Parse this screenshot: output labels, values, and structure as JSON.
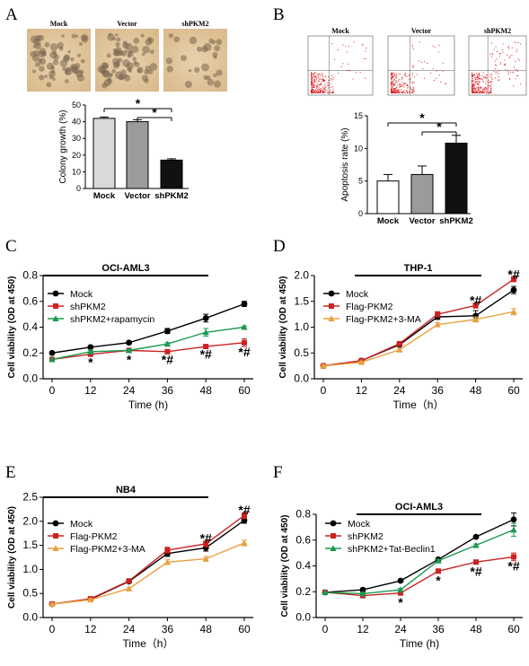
{
  "panels": {
    "A": {
      "letter": "A",
      "images": [
        "Mock",
        "Vector",
        "shPKM2"
      ],
      "chart": {
        "type": "bar",
        "categories": [
          "Mock",
          "Vector",
          "shPKM2"
        ],
        "values": [
          42,
          40,
          17
        ],
        "errors": [
          0.8,
          1.2,
          0.8
        ],
        "ylabel": "Colony growth (%)",
        "ylim": [
          0,
          50
        ],
        "yticks": [
          0,
          10,
          20,
          30,
          40,
          50
        ],
        "colors": [
          "#d9d9d9",
          "#9b9b9b",
          "#111111"
        ],
        "significance": [
          {
            "from": 0,
            "to": 2,
            "label": "*"
          },
          {
            "from": 1,
            "to": 2,
            "label": "*"
          }
        ]
      }
    },
    "B": {
      "letter": "B",
      "images": [
        "Mock",
        "Vector",
        "shPKM2"
      ],
      "chart": {
        "type": "bar",
        "categories": [
          "Mock",
          "Vector",
          "shPKM2"
        ],
        "values": [
          5,
          6,
          10.8
        ],
        "errors": [
          1.0,
          1.3,
          1.2
        ],
        "ylabel": "Apoptosis rate (%)",
        "ylim": [
          0,
          15
        ],
        "yticks": [
          0,
          5,
          10,
          15
        ],
        "colors": [
          "#ffffff",
          "#9b9b9b",
          "#111111"
        ],
        "significance": [
          {
            "from": 0,
            "to": 2,
            "label": "*"
          },
          {
            "from": 1,
            "to": 2,
            "label": "*"
          }
        ]
      }
    },
    "C": {
      "letter": "C",
      "chart": {
        "type": "line",
        "title": "OCI-AML3",
        "x": [
          0,
          12,
          24,
          36,
          48,
          60
        ],
        "xlabel": "Time (h)",
        "ylabel": "Cell viability (OD at 450)",
        "ylim": [
          0,
          0.8
        ],
        "yticks": [
          "0.0",
          "0.2",
          "0.4",
          "0.6",
          "0.8"
        ],
        "series": [
          {
            "name": "Mock",
            "values": [
              0.2,
              0.245,
              0.28,
              0.37,
              0.47,
              0.58
            ],
            "errors": [
              0.005,
              0.01,
              0.01,
              0.02,
              0.03,
              0.02
            ],
            "color": "#000000",
            "marker": "circle"
          },
          {
            "name": "shPKM2",
            "values": [
              0.15,
              0.19,
              0.22,
              0.21,
              0.25,
              0.28
            ],
            "errors": [
              0.005,
              0.01,
              0.01,
              0.01,
              0.01,
              0.03
            ],
            "color": "#cc2222",
            "marker": "square"
          },
          {
            "name": "shPKM2+rapamycin",
            "values": [
              0.15,
              0.21,
              0.22,
              0.27,
              0.36,
              0.4
            ],
            "errors": [
              0.005,
              0.01,
              0.01,
              0.01,
              0.03,
              0.01
            ],
            "color": "#1a9a50",
            "marker": "triangle"
          }
        ],
        "annotations": [
          {
            "x": 12,
            "y": 0.13,
            "text": "*"
          },
          {
            "x": 24,
            "y": 0.15,
            "text": "*"
          },
          {
            "x": 36,
            "y": 0.15,
            "text": "*#"
          },
          {
            "x": 48,
            "y": 0.19,
            "text": "*#"
          },
          {
            "x": 60,
            "y": 0.21,
            "text": "*#"
          }
        ]
      }
    },
    "D": {
      "letter": "D",
      "chart": {
        "type": "line",
        "title": "THP-1",
        "x": [
          0,
          12,
          24,
          36,
          48,
          60
        ],
        "xlabel": "Time（h）",
        "ylabel": "Cell viability (OD at 450)",
        "ylim": [
          0,
          2.0
        ],
        "yticks": [
          "0.0",
          "0.5",
          "1.0",
          "1.5",
          "2.0"
        ],
        "series": [
          {
            "name": "Mock",
            "values": [
              0.25,
              0.35,
              0.66,
              1.2,
              1.22,
              1.72
            ],
            "errors": [
              0.02,
              0.02,
              0.03,
              0.05,
              0.1,
              0.07
            ],
            "color": "#000000",
            "marker": "circle"
          },
          {
            "name": "Flag-PKM2",
            "values": [
              0.25,
              0.35,
              0.68,
              1.25,
              1.42,
              1.93
            ],
            "errors": [
              0.02,
              0.02,
              0.03,
              0.05,
              0.05,
              0.05
            ],
            "color": "#cc2222",
            "marker": "square"
          },
          {
            "name": "Flag-PKM2+3-MA",
            "values": [
              0.25,
              0.32,
              0.56,
              1.05,
              1.15,
              1.3
            ],
            "errors": [
              0.02,
              0.02,
              0.03,
              0.04,
              0.05,
              0.06
            ],
            "color": "#e8a040",
            "marker": "triangle"
          }
        ],
        "annotations": [
          {
            "x": 48,
            "y": 1.52,
            "text": "*#"
          },
          {
            "x": 60,
            "y": 2.03,
            "text": "*#"
          }
        ]
      }
    },
    "E": {
      "letter": "E",
      "chart": {
        "type": "line",
        "title": "NB4",
        "x": [
          0,
          12,
          24,
          36,
          48,
          60
        ],
        "xlabel": "Time（h）",
        "ylabel": "Cell viability (OD at 450)",
        "ylim": [
          0,
          2.5
        ],
        "yticks": [
          "0.0",
          "0.5",
          "1.0",
          "1.5",
          "2.0",
          "2.5"
        ],
        "series": [
          {
            "name": "Mock",
            "values": [
              0.28,
              0.38,
              0.75,
              1.33,
              1.45,
              2.02
            ],
            "errors": [
              0.02,
              0.02,
              0.03,
              0.06,
              0.07,
              0.06
            ],
            "color": "#000000",
            "marker": "circle"
          },
          {
            "name": "Flag-PKM2",
            "values": [
              0.28,
              0.39,
              0.76,
              1.4,
              1.53,
              2.12
            ],
            "errors": [
              0.02,
              0.02,
              0.03,
              0.06,
              0.06,
              0.06
            ],
            "color": "#cc2222",
            "marker": "square"
          },
          {
            "name": "Flag-PKM2+3-MA",
            "values": [
              0.28,
              0.37,
              0.6,
              1.15,
              1.22,
              1.55
            ],
            "errors": [
              0.02,
              0.02,
              0.03,
              0.05,
              0.05,
              0.06
            ],
            "color": "#e8a040",
            "marker": "triangle"
          }
        ],
        "annotations": [
          {
            "x": 48,
            "y": 1.65,
            "text": "*#"
          },
          {
            "x": 60,
            "y": 2.24,
            "text": "*#"
          }
        ]
      }
    },
    "F": {
      "letter": "F",
      "chart": {
        "type": "line",
        "title": "OCI-AML3",
        "x": [
          0,
          12,
          24,
          36,
          48,
          60
        ],
        "xlabel": "Time (h)",
        "ylabel": "Cell viability (OD at 450)",
        "ylim": [
          0,
          0.8
        ],
        "yticks": [
          "0.0",
          "0.2",
          "0.4",
          "0.6",
          "0.8"
        ],
        "series": [
          {
            "name": "Mock",
            "values": [
              0.195,
              0.215,
              0.285,
              0.45,
              0.625,
              0.76
            ],
            "errors": [
              0.005,
              0.01,
              0.01,
              0.01,
              0.01,
              0.05
            ],
            "color": "#000000",
            "marker": "circle"
          },
          {
            "name": "shPKM2",
            "values": [
              0.195,
              0.17,
              0.19,
              0.36,
              0.43,
              0.47
            ],
            "errors": [
              0.005,
              0.01,
              0.01,
              0.01,
              0.01,
              0.03
            ],
            "color": "#cc2222",
            "marker": "square"
          },
          {
            "name": "shPKM2+Tat-Beclin1",
            "values": [
              0.195,
              0.185,
              0.215,
              0.44,
              0.56,
              0.68
            ],
            "errors": [
              0.005,
              0.01,
              0.01,
              0.01,
              0.01,
              0.05
            ],
            "color": "#1a9a50",
            "marker": "triangle"
          }
        ],
        "annotations": [
          {
            "x": 24,
            "y": 0.12,
            "text": "*"
          },
          {
            "x": 36,
            "y": 0.29,
            "text": "*"
          },
          {
            "x": 48,
            "y": 0.36,
            "text": "*#"
          },
          {
            "x": 60,
            "y": 0.4,
            "text": "*#"
          }
        ]
      }
    }
  }
}
